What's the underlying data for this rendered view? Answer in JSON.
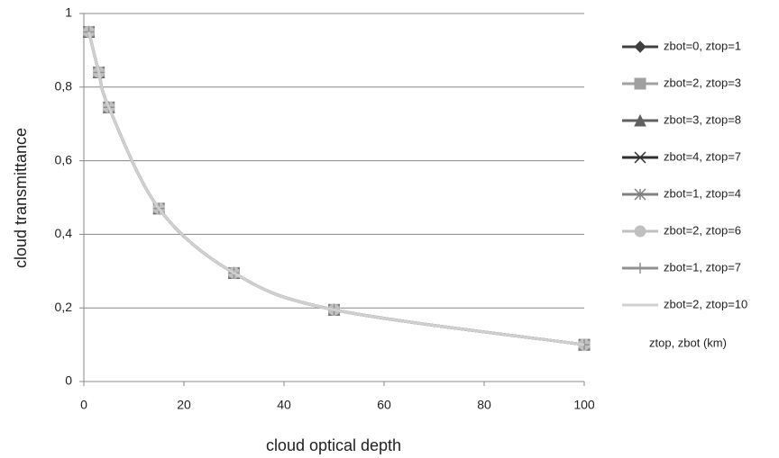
{
  "chart_data": {
    "type": "line",
    "x_label": "cloud optical depth",
    "y_label": "cloud transmittance",
    "legend_note": "ztop, zbot (km)",
    "x": [
      1,
      3,
      5,
      15,
      30,
      50,
      100
    ],
    "series": [
      {
        "name": "zbot=0, ztop=1",
        "color": "#404040",
        "marker": "diamond",
        "values": [
          0.95,
          0.84,
          0.745,
          0.47,
          0.295,
          0.195,
          0.1
        ]
      },
      {
        "name": "zbot=2, ztop=3",
        "color": "#a0a0a0",
        "marker": "square",
        "values": [
          0.95,
          0.84,
          0.745,
          0.47,
          0.295,
          0.195,
          0.1
        ]
      },
      {
        "name": "zbot=3, ztop=8",
        "color": "#606060",
        "marker": "triangle",
        "values": [
          0.95,
          0.84,
          0.745,
          0.47,
          0.295,
          0.195,
          0.1
        ]
      },
      {
        "name": "zbot=4, ztop=7",
        "color": "#303030",
        "marker": "x",
        "values": [
          0.95,
          0.84,
          0.745,
          0.47,
          0.295,
          0.195,
          0.1
        ]
      },
      {
        "name": "zbot=1, ztop=4",
        "color": "#808080",
        "marker": "star",
        "values": [
          0.95,
          0.84,
          0.745,
          0.47,
          0.295,
          0.195,
          0.1
        ]
      },
      {
        "name": "zbot=2, ztop=6",
        "color": "#c0c0c0",
        "marker": "circle",
        "values": [
          0.95,
          0.84,
          0.745,
          0.47,
          0.295,
          0.195,
          0.1
        ]
      },
      {
        "name": "zbot=1, ztop=7",
        "color": "#909090",
        "marker": "plus",
        "values": [
          0.95,
          0.84,
          0.745,
          0.47,
          0.295,
          0.195,
          0.1
        ]
      },
      {
        "name": "zbot=2, ztop=10",
        "color": "#d0d0d0",
        "marker": "none",
        "values": [
          0.95,
          0.84,
          0.745,
          0.47,
          0.295,
          0.195,
          0.1
        ]
      }
    ],
    "xlim": [
      0,
      100
    ],
    "xticks": [
      0,
      20,
      40,
      60,
      80,
      100
    ],
    "ylim": [
      0,
      1
    ],
    "yticks": [
      0,
      {
        "value": 0.2,
        "label": "0,2"
      },
      {
        "value": 0.4,
        "label": "0,4"
      },
      {
        "value": 0.6,
        "label": "0,6"
      },
      {
        "value": 0.8,
        "label": "0,8"
      },
      1
    ],
    "grid": true,
    "legend": "right"
  }
}
